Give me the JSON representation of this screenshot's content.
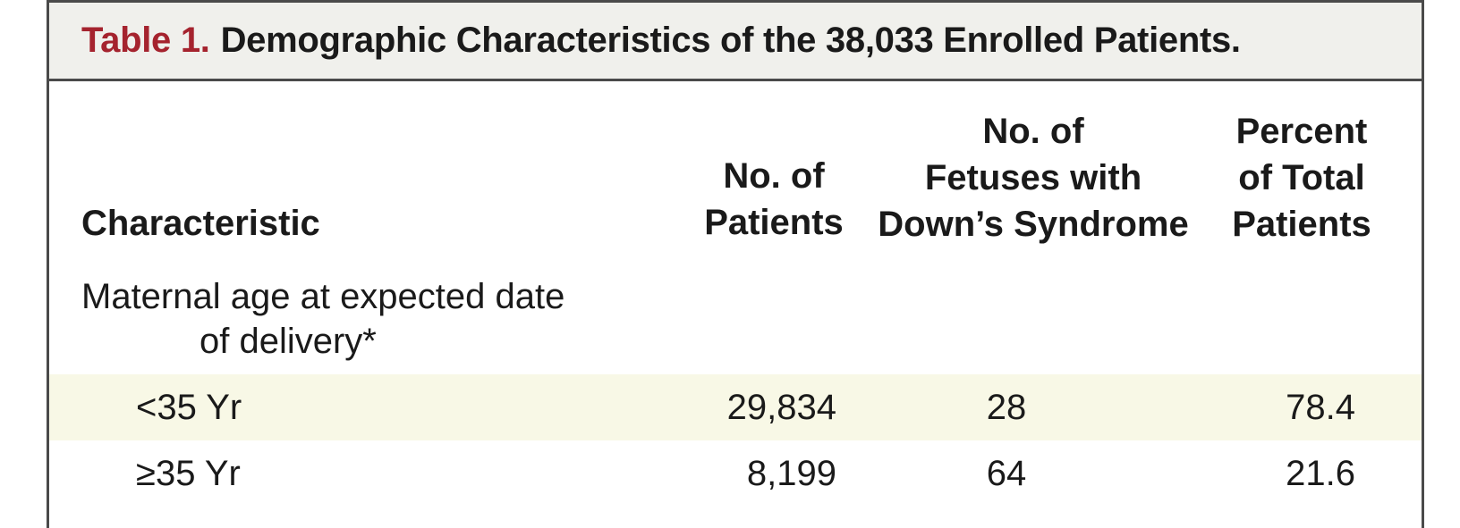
{
  "table": {
    "label": "Table 1.",
    "title": "Demographic Characteristics of the 38,033 Enrolled Patients.",
    "headers": {
      "characteristic": "Characteristic",
      "patients": [
        "No. of",
        "Patients"
      ],
      "down_syndrome": [
        "No. of",
        "Fetuses with",
        "Down’s Syndrome"
      ],
      "percent": [
        "Percent",
        "of Total",
        "Patients"
      ]
    },
    "section": {
      "label_line1": "Maternal age at expected date",
      "label_line2": "of delivery*"
    },
    "rows": [
      {
        "label": "<35 Yr",
        "patients": "29,834",
        "down_syndrome": "28",
        "percent": "78.4"
      },
      {
        "label": "≥35 Yr",
        "patients": "8,199",
        "down_syndrome": "64",
        "percent": "21.6"
      }
    ]
  },
  "colors": {
    "title_label": "#a5232e",
    "title_bar_bg": "#f0f0ec",
    "row_shade": "#f8f8e6",
    "border": "#4a4a4a"
  }
}
